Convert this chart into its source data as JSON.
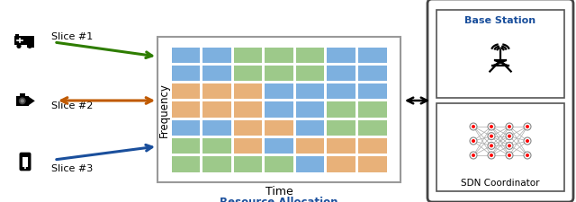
{
  "bg_color": "#ffffff",
  "grid_colors": [
    [
      "#6fa8dc",
      "#6fa8dc",
      "#93c47d",
      "#93c47d",
      "#93c47d",
      "#6fa8dc",
      "#6fa8dc"
    ],
    [
      "#6fa8dc",
      "#6fa8dc",
      "#93c47d",
      "#93c47d",
      "#93c47d",
      "#6fa8dc",
      "#6fa8dc"
    ],
    [
      "#e6a96a",
      "#e6a96a",
      "#e6a96a",
      "#6fa8dc",
      "#6fa8dc",
      "#6fa8dc",
      "#6fa8dc"
    ],
    [
      "#e6a96a",
      "#e6a96a",
      "#e6a96a",
      "#6fa8dc",
      "#6fa8dc",
      "#93c47d",
      "#93c47d"
    ],
    [
      "#6fa8dc",
      "#6fa8dc",
      "#e6a96a",
      "#e6a96a",
      "#6fa8dc",
      "#93c47d",
      "#93c47d"
    ],
    [
      "#93c47d",
      "#93c47d",
      "#e6a96a",
      "#6fa8dc",
      "#e6a96a",
      "#e6a96a",
      "#e6a96a"
    ],
    [
      "#93c47d",
      "#93c47d",
      "#93c47d",
      "#93c47d",
      "#6fa8dc",
      "#e6a96a",
      "#e6a96a"
    ]
  ],
  "grid_rows": 7,
  "grid_cols": 7,
  "slice_labels": [
    "Slice #1",
    "Slice #2",
    "Slice #3"
  ],
  "slice_colors": [
    "#2e7d00",
    "#c05a00",
    "#1a4f9c"
  ],
  "resource_alloc_label": "Resource Allocation",
  "resource_alloc_color": "#1a4f9c",
  "base_station_label": "Base Station",
  "sdn_label": "SDN Coordinator",
  "freq_label": "Frequency",
  "time_label": "Time"
}
